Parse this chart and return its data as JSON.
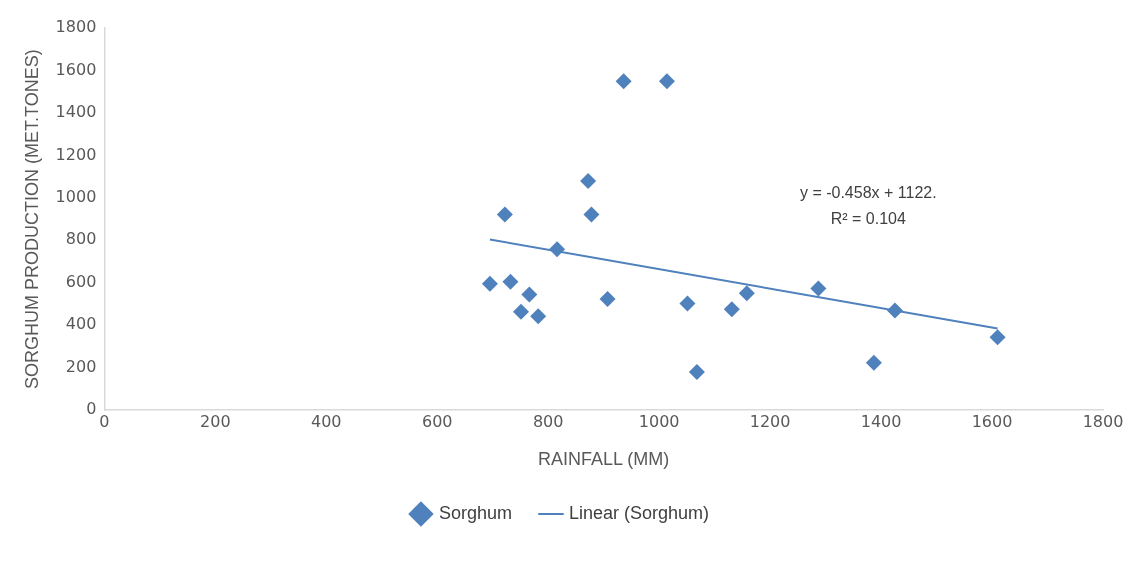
{
  "chart_data": {
    "type": "scatter",
    "xlabel": "RAINFALL (MM)",
    "ylabel": "SORGHUM PRODUCTION (MET.TONES)",
    "xlim": [
      0,
      1800
    ],
    "xticks": [
      0,
      200,
      400,
      600,
      800,
      1000,
      1200,
      1400,
      1600,
      1800
    ],
    "ylim": [
      0,
      1800
    ],
    "yticks": [
      0,
      200,
      400,
      600,
      800,
      1000,
      1200,
      1400,
      1600,
      1800
    ],
    "grid": false,
    "legend": "bottom",
    "marker": "diamond",
    "annotations": [
      "y = -0.458x + 1122.",
      "R² = 0.104"
    ],
    "series": [
      {
        "name": "Sorghum",
        "color": "#4f81bd",
        "x": [
          695,
          722,
          732,
          751,
          766,
          782,
          816,
          872,
          878,
          907,
          936,
          1014,
          1051,
          1068,
          1131,
          1158,
          1287,
          1387,
          1425,
          1610
        ],
        "values": [
          595,
          922,
          605,
          464,
          545,
          442,
          758,
          1080,
          922,
          524,
          1549,
          1549,
          502,
          180,
          475,
          551,
          573,
          224,
          469,
          344
        ]
      },
      {
        "name": "Linear (Sorghum)",
        "type": "line",
        "marker": "none",
        "color": "#4f81bd",
        "x": [
          695,
          1610
        ],
        "values": [
          804,
          385
        ]
      }
    ]
  }
}
